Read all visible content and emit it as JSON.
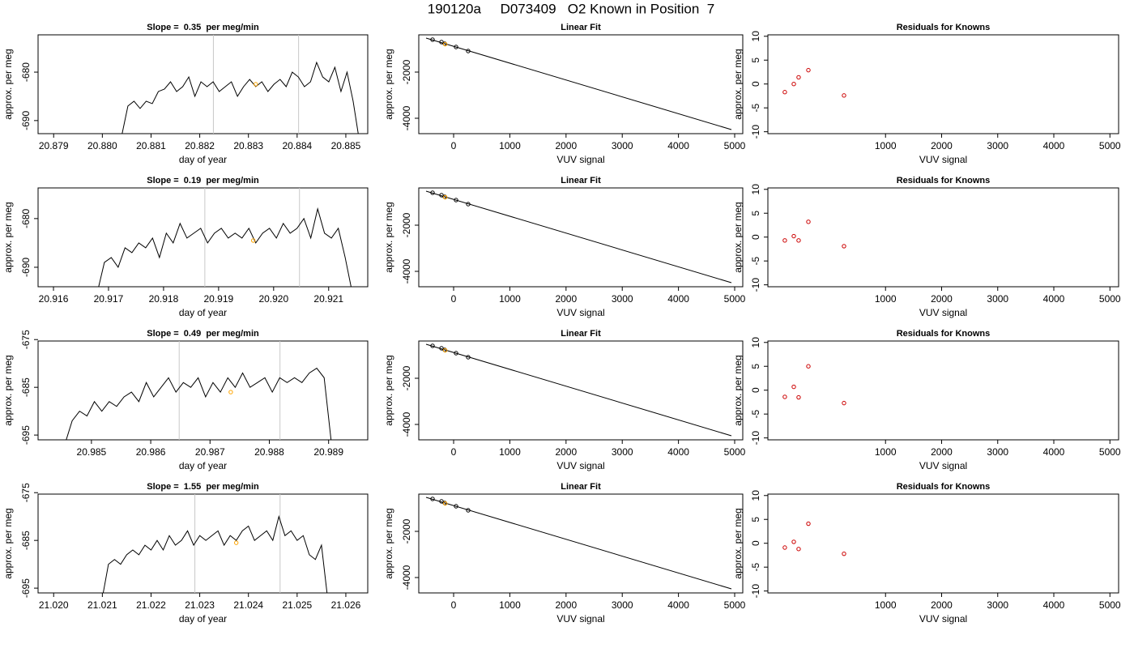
{
  "title": "190120a     D073409   O2 Known in Position  7",
  "chart_data": [
    {
      "type": "line",
      "title": "Slope =  0.35  per meg/min",
      "xlabel": "day of year",
      "ylabel": "approx. per meg",
      "color": "#000000",
      "x": [
        20.8804,
        20.880525,
        20.88065,
        20.880775,
        20.8809,
        20.881025,
        20.88115,
        20.881275,
        20.8814,
        20.881525,
        20.88165,
        20.881775,
        20.8819,
        20.882025,
        20.88215,
        20.882275,
        20.8824,
        20.882525,
        20.88265,
        20.882775,
        20.8829,
        20.883025,
        20.88315,
        20.883275,
        20.8834,
        20.883525,
        20.88365,
        20.883775,
        20.8839,
        20.884025,
        20.88415,
        20.884275,
        20.8844,
        20.884525,
        20.88465,
        20.884775,
        20.8849,
        20.885025,
        20.88515,
        20.885275
      ],
      "values": [
        -693,
        -687,
        -686,
        -687.5,
        -686,
        -686.5,
        -684,
        -683.5,
        -682,
        -684,
        -683,
        -681,
        -685,
        -682,
        -683,
        -682,
        -684,
        -683,
        -682,
        -685,
        -683,
        -681.5,
        -683,
        -682,
        -684,
        -682.5,
        -681.5,
        -683,
        -680,
        -681,
        -683,
        -682,
        -678,
        -681,
        -682,
        -679,
        -684,
        -680,
        -686,
        -694
      ],
      "vlines": [
        20.88228,
        20.88403
      ],
      "vline_color": "#c8c8c8",
      "highlight": {
        "x": 20.88315,
        "y": -682.5,
        "color": "#ffa500"
      },
      "xlim": [
        20.87868,
        20.88545
      ],
      "ylim": [
        -692.7,
        -672.3
      ],
      "xticks": [
        20.879,
        {
          "value": 20.88,
          "label": "20.880"
        },
        20.881,
        20.882,
        20.883,
        20.884,
        20.885
      ],
      "yticks": [
        -690,
        -680
      ]
    },
    {
      "type": "scatter",
      "title": "Linear Fit",
      "xlabel": "VUV signal",
      "ylabel": "approx. per meg",
      "color": "#000000",
      "x": [
        -375,
        -216,
        -158,
        43,
        259
      ],
      "values": [
        -595,
        -700,
        -770,
        -912,
        -1088
      ],
      "fit_line": {
        "x": [
          -490,
          4942
        ],
        "values": [
          -526,
          -4491
        ]
      },
      "highlight": {
        "x": -150,
        "y": -790,
        "color": "#ffa500"
      },
      "xlim": [
        -620,
        5144
      ],
      "ylim": [
        -4667,
        -386
      ],
      "xticks": [
        0,
        1000,
        2000,
        3000,
        4000,
        5000
      ],
      "yticks": [
        -4000,
        -2000
      ]
    },
    {
      "type": "scatter",
      "title": "Residuals for Knowns",
      "xlabel": "VUV signal",
      "ylabel": "approx. per meg",
      "color": "#cc0000",
      "x": [
        -795,
        -635,
        -549,
        -375,
        260
      ],
      "values": [
        -1.7,
        0,
        1.4,
        2.9,
        -2.4
      ],
      "xlim": [
        -1097,
        5155
      ],
      "ylim": [
        -10.4,
        10.3
      ],
      "xticks": [
        1000,
        2000,
        3000,
        4000,
        5000
      ],
      "yticks": [
        -10,
        -5,
        0,
        5,
        10
      ]
    },
    {
      "type": "line",
      "title": "Slope =  0.19  per meg/min",
      "xlabel": "day of year",
      "ylabel": "approx. per meg",
      "color": "#000000",
      "x": [
        20.9168,
        20.916925,
        20.91705,
        20.917175,
        20.9173,
        20.917425,
        20.91755,
        20.917675,
        20.9178,
        20.917925,
        20.91805,
        20.918175,
        20.9183,
        20.918425,
        20.91855,
        20.918675,
        20.9188,
        20.918925,
        20.91905,
        20.919175,
        20.9193,
        20.919425,
        20.91955,
        20.919675,
        20.9198,
        20.919925,
        20.92005,
        20.920175,
        20.9203,
        20.920425,
        20.92055,
        20.920675,
        20.9208,
        20.920925,
        20.92105,
        20.921175,
        20.9213,
        20.921425
      ],
      "values": [
        -695,
        -689,
        -688,
        -690,
        -686,
        -687,
        -685,
        -686,
        -684,
        -688,
        -683,
        -685,
        -681,
        -684,
        -683,
        -682,
        -685,
        -683,
        -682,
        -684,
        -683,
        -684,
        -682,
        -685,
        -683,
        -682,
        -684,
        -681,
        -683,
        -682,
        -680,
        -684,
        -678,
        -683,
        -684,
        -682,
        -688,
        -695
      ],
      "vlines": [
        20.91875,
        20.92047
      ],
      "vline_color": "#c8c8c8",
      "highlight": {
        "x": 20.91963,
        "y": -684.5,
        "color": "#ffa500"
      },
      "xlim": [
        20.91572,
        20.92171
      ],
      "ylim": [
        -694,
        -673.7
      ],
      "xticks": [
        20.916,
        20.917,
        20.918,
        20.919,
        {
          "value": 20.92,
          "label": "20.920"
        },
        20.921
      ],
      "yticks": [
        -690,
        -680
      ]
    },
    {
      "type": "scatter",
      "title": "Linear Fit",
      "xlabel": "VUV signal",
      "ylabel": "approx. per meg",
      "color": "#000000",
      "x": [
        -375,
        -216,
        -158,
        43,
        259
      ],
      "values": [
        -595,
        -700,
        -770,
        -912,
        -1088
      ],
      "fit_line": {
        "x": [
          -490,
          4942
        ],
        "values": [
          -526,
          -4491
        ]
      },
      "highlight": {
        "x": -150,
        "y": -790,
        "color": "#ffa500"
      },
      "xlim": [
        -620,
        5144
      ],
      "ylim": [
        -4667,
        -386
      ],
      "xticks": [
        0,
        1000,
        2000,
        3000,
        4000,
        5000
      ],
      "yticks": [
        -4000,
        -2000
      ]
    },
    {
      "type": "scatter",
      "title": "Residuals for Knowns",
      "xlabel": "VUV signal",
      "ylabel": "approx. per meg",
      "color": "#cc0000",
      "x": [
        -795,
        -635,
        -549,
        -375,
        260
      ],
      "values": [
        -0.7,
        0.2,
        -0.7,
        3.2,
        -1.9
      ],
      "xlim": [
        -1097,
        5155
      ],
      "ylim": [
        -10.4,
        10.3
      ],
      "xticks": [
        1000,
        2000,
        3000,
        4000,
        5000
      ],
      "yticks": [
        -10,
        -5,
        0,
        5,
        10
      ]
    },
    {
      "type": "line",
      "title": "Slope =  0.49  per meg/min",
      "xlabel": "day of year",
      "ylabel": "approx. per meg",
      "color": "#000000",
      "x": [
        20.98455,
        20.984675,
        20.9848,
        20.984925,
        20.98505,
        20.985175,
        20.9853,
        20.985425,
        20.98555,
        20.985675,
        20.9858,
        20.985925,
        20.98605,
        20.986175,
        20.9863,
        20.986425,
        20.98655,
        20.986675,
        20.9868,
        20.986925,
        20.98705,
        20.987175,
        20.9873,
        20.987425,
        20.98755,
        20.987675,
        20.9878,
        20.987925,
        20.98805,
        20.988175,
        20.9883,
        20.988425,
        20.98855,
        20.988675,
        20.9888,
        20.988925,
        20.98905
      ],
      "values": [
        -697,
        -692,
        -690,
        -691,
        -688,
        -690,
        -688,
        -689,
        -687,
        -686,
        -688,
        -684,
        -687,
        -685,
        -683,
        -686,
        -684,
        -685,
        -683,
        -687,
        -684,
        -686,
        -683,
        -685,
        -682,
        -685,
        -684,
        -683,
        -686,
        -683,
        -684,
        -683,
        -684,
        -682,
        -681,
        -683,
        -697
      ],
      "vlines": [
        20.98648,
        20.98818
      ],
      "vline_color": "#c8c8c8",
      "highlight": {
        "x": 20.98735,
        "y": -686,
        "color": "#ffa500"
      },
      "xlim": [
        20.9841,
        20.98966
      ],
      "ylim": [
        -696,
        -675.3
      ],
      "xticks": [
        20.985,
        20.986,
        20.987,
        20.988,
        20.989
      ],
      "yticks": [
        -695,
        -685,
        -675
      ]
    },
    {
      "type": "scatter",
      "title": "Linear Fit",
      "xlabel": "VUV signal",
      "ylabel": "approx. per meg",
      "color": "#000000",
      "x": [
        -375,
        -216,
        -158,
        43,
        259
      ],
      "values": [
        -595,
        -700,
        -770,
        -912,
        -1088
      ],
      "fit_line": {
        "x": [
          -490,
          4942
        ],
        "values": [
          -526,
          -4491
        ]
      },
      "highlight": {
        "x": -150,
        "y": -790,
        "color": "#ffa500"
      },
      "xlim": [
        -620,
        5144
      ],
      "ylim": [
        -4667,
        -386
      ],
      "xticks": [
        0,
        1000,
        2000,
        3000,
        4000,
        5000
      ],
      "yticks": [
        -4000,
        -2000
      ]
    },
    {
      "type": "scatter",
      "title": "Residuals for Knowns",
      "xlabel": "VUV signal",
      "ylabel": "approx. per meg",
      "color": "#cc0000",
      "x": [
        -795,
        -635,
        -549,
        -375,
        260
      ],
      "values": [
        -1.4,
        0.7,
        -1.5,
        5,
        -2.7
      ],
      "xlim": [
        -1097,
        5155
      ],
      "ylim": [
        -10.4,
        10.3
      ],
      "xticks": [
        1000,
        2000,
        3000,
        4000,
        5000
      ],
      "yticks": [
        -10,
        -5,
        0,
        5,
        10
      ]
    },
    {
      "type": "line",
      "title": "Slope =  1.55  per meg/min",
      "xlabel": "day of year",
      "ylabel": "approx. per meg",
      "color": "#000000",
      "x": [
        21.021,
        21.021125,
        21.02125,
        21.021375,
        21.0215,
        21.021625,
        21.02175,
        21.021875,
        21.022,
        21.022125,
        21.02225,
        21.022375,
        21.0225,
        21.022625,
        21.02275,
        21.022875,
        21.023,
        21.023125,
        21.02325,
        21.023375,
        21.0235,
        21.023625,
        21.02375,
        21.023875,
        21.024,
        21.024125,
        21.02425,
        21.024375,
        21.0245,
        21.024625,
        21.02475,
        21.024875,
        21.025,
        21.025125,
        21.02525,
        21.025375,
        21.0255,
        21.025625
      ],
      "values": [
        -697,
        -690,
        -689,
        -690,
        -688,
        -687,
        -688,
        -686,
        -687,
        -685,
        -687,
        -684,
        -686,
        -685,
        -683,
        -686,
        -684,
        -685,
        -684,
        -683,
        -686,
        -684,
        -685,
        -683,
        -682,
        -685,
        -684,
        -683,
        -685,
        -680,
        -684,
        -683,
        -685,
        -684,
        -688,
        -689,
        -686,
        -697
      ],
      "vlines": [
        21.0229,
        21.02465
      ],
      "vline_color": "#c8c8c8",
      "highlight": {
        "x": 21.02375,
        "y": -685.5,
        "color": "#ffa500"
      },
      "xlim": [
        21.01968,
        21.02645
      ],
      "ylim": [
        -696,
        -675.3
      ],
      "xticks": [
        {
          "value": 21.02,
          "label": "21.020"
        },
        21.021,
        21.022,
        21.023,
        21.024,
        21.025,
        21.026
      ],
      "yticks": [
        -695,
        -685,
        -675
      ]
    },
    {
      "type": "scatter",
      "title": "Linear Fit",
      "xlabel": "VUV signal",
      "ylabel": "approx. per meg",
      "color": "#000000",
      "x": [
        -375,
        -216,
        -158,
        43,
        259
      ],
      "values": [
        -595,
        -700,
        -770,
        -912,
        -1088
      ],
      "fit_line": {
        "x": [
          -490,
          4942
        ],
        "values": [
          -526,
          -4491
        ]
      },
      "highlight": {
        "x": -150,
        "y": -790,
        "color": "#ffa500"
      },
      "xlim": [
        -620,
        5144
      ],
      "ylim": [
        -4667,
        -386
      ],
      "xticks": [
        0,
        1000,
        2000,
        3000,
        4000,
        5000
      ],
      "yticks": [
        -4000,
        -2000
      ]
    },
    {
      "type": "scatter",
      "title": "Residuals for Knowns",
      "xlabel": "VUV signal",
      "ylabel": "approx. per meg",
      "color": "#cc0000",
      "x": [
        -795,
        -635,
        -549,
        -375,
        260
      ],
      "values": [
        -0.9,
        0.3,
        -1.2,
        4.1,
        -2.2
      ],
      "xlim": [
        -1097,
        5155
      ],
      "ylim": [
        -10.4,
        10.3
      ],
      "xticks": [
        1000,
        2000,
        3000,
        4000,
        5000
      ],
      "yticks": [
        -10,
        -5,
        0,
        5,
        10
      ]
    }
  ]
}
